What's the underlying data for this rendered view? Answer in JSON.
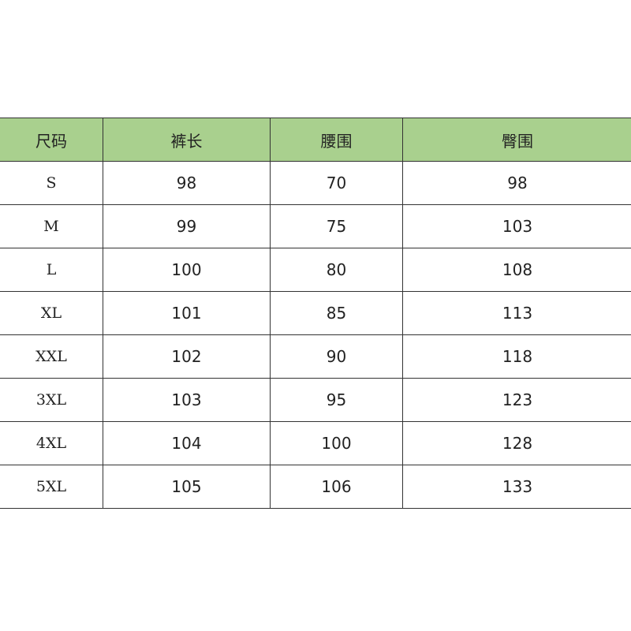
{
  "table": {
    "headers": [
      "尺码",
      "裤长",
      "腰围",
      "臀围"
    ],
    "rows": [
      [
        "S",
        "98",
        "70",
        "98"
      ],
      [
        "M",
        "99",
        "75",
        "103"
      ],
      [
        "L",
        "100",
        "80",
        "108"
      ],
      [
        "XL",
        "101",
        "85",
        "113"
      ],
      [
        "XXL",
        "102",
        "90",
        "118"
      ],
      [
        "3XL",
        "103",
        "95",
        "123"
      ],
      [
        "4XL",
        "104",
        "100",
        "128"
      ],
      [
        "5XL",
        "105",
        "106",
        "133"
      ]
    ]
  },
  "colors": {
    "header_bg": "#a9d08e",
    "border": "#333333"
  }
}
